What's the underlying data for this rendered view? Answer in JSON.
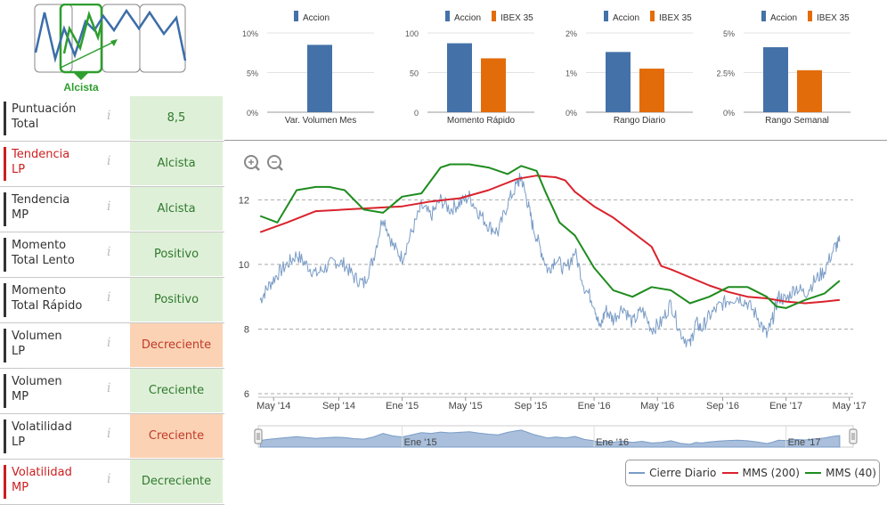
{
  "trend": {
    "label": "Alcista"
  },
  "metrics": [
    {
      "label_l1": "Puntuación",
      "label_l2": "Total",
      "value": "8,5",
      "status": "green",
      "label_red": false
    },
    {
      "label_l1": "Tendencia",
      "label_l2": "LP",
      "value": "Alcista",
      "status": "green",
      "label_red": true
    },
    {
      "label_l1": "Tendencia",
      "label_l2": "MP",
      "value": "Alcista",
      "status": "green",
      "label_red": false
    },
    {
      "label_l1": "Momento",
      "label_l2": "Total Lento",
      "value": "Positivo",
      "status": "green",
      "label_red": false
    },
    {
      "label_l1": "Momento",
      "label_l2": "Total Rápido",
      "value": "Positivo",
      "status": "green",
      "label_red": false
    },
    {
      "label_l1": "Volumen",
      "label_l2": "LP",
      "value": "Decreciente",
      "status": "orange",
      "label_red": false
    },
    {
      "label_l1": "Volumen",
      "label_l2": "MP",
      "value": "Creciente",
      "status": "green",
      "label_red": false
    },
    {
      "label_l1": "Volatilidad",
      "label_l2": "LP",
      "value": "Creciente",
      "status": "orange",
      "label_red": false
    },
    {
      "label_l1": "Volatilidad",
      "label_l2": "MP",
      "value": "Decreciente",
      "status": "green",
      "label_red": true
    }
  ],
  "info_icon": "i",
  "colors": {
    "accion": "#4472a8",
    "ibex": "#e36c0a",
    "cierre": "#7a9cc6",
    "mms200": "#d9232d",
    "mms40": "#1e8c1e",
    "trend_green": "#2e9e2e"
  },
  "chart_data": [
    {
      "type": "bar",
      "title": "Var. Volumen Mes",
      "yticks": [
        "10%",
        "5%",
        "0%"
      ],
      "ylim": [
        0,
        10
      ],
      "series": [
        {
          "name": "Accion",
          "values": [
            8.5
          ]
        }
      ]
    },
    {
      "type": "bar",
      "title": "Momento Rápido",
      "yticks": [
        "100",
        "50",
        "0"
      ],
      "ylim": [
        0,
        100
      ],
      "series": [
        {
          "name": "Accion",
          "values": [
            87
          ]
        },
        {
          "name": "IBEX 35",
          "values": [
            68
          ]
        }
      ]
    },
    {
      "type": "bar",
      "title": "Rango Diario",
      "yticks": [
        "2%",
        "1%",
        "0%"
      ],
      "ylim": [
        0,
        2
      ],
      "series": [
        {
          "name": "Accion",
          "values": [
            1.52
          ]
        },
        {
          "name": "IBEX 35",
          "values": [
            1.1
          ]
        }
      ]
    },
    {
      "type": "bar",
      "title": "Rango Semanal",
      "yticks": [
        "5%",
        "2.5%",
        "0%"
      ],
      "ylim": [
        0,
        5
      ],
      "series": [
        {
          "name": "Accion",
          "values": [
            4.1
          ]
        },
        {
          "name": "IBEX 35",
          "values": [
            2.65
          ]
        }
      ]
    },
    {
      "type": "line",
      "title": "",
      "yticks": [
        "12",
        "10",
        "8",
        "6"
      ],
      "ylim": [
        6,
        13.5
      ],
      "xlim": [
        2014.25,
        2017.35
      ],
      "xticks": [
        {
          "label": "May '14",
          "t": 2014.33
        },
        {
          "label": "Sep '14",
          "t": 2014.67
        },
        {
          "label": "Ene '15",
          "t": 2015.0
        },
        {
          "label": "May '15",
          "t": 2015.33
        },
        {
          "label": "Sep '15",
          "t": 2015.67
        },
        {
          "label": "Ene '16",
          "t": 2016.0
        },
        {
          "label": "May '16",
          "t": 2016.33
        },
        {
          "label": "Sep '16",
          "t": 2016.67
        },
        {
          "label": "Ene '17",
          "t": 2017.0
        },
        {
          "label": "May '17",
          "t": 2017.33
        }
      ],
      "navigator_labels": [
        {
          "label": "Ene '15",
          "t": 2015.0
        },
        {
          "label": "Ene '16",
          "t": 2016.0
        },
        {
          "label": "Ene '17",
          "t": 2017.0
        }
      ],
      "series": [
        {
          "name": "Cierre Diario",
          "t": [
            2014.26,
            2014.3,
            2014.35,
            2014.4,
            2014.45,
            2014.5,
            2014.55,
            2014.6,
            2014.65,
            2014.7,
            2014.75,
            2014.8,
            2014.85,
            2014.9,
            2014.95,
            2015.0,
            2015.05,
            2015.1,
            2015.15,
            2015.2,
            2015.25,
            2015.3,
            2015.35,
            2015.4,
            2015.45,
            2015.5,
            2015.55,
            2015.6,
            2015.62,
            2015.65,
            2015.68,
            2015.72,
            2015.76,
            2015.8,
            2015.85,
            2015.9,
            2015.95,
            2016.0,
            2016.03,
            2016.06,
            2016.1,
            2016.15,
            2016.2,
            2016.25,
            2016.3,
            2016.35,
            2016.4,
            2016.45,
            2016.5,
            2016.53,
            2016.56,
            2016.6,
            2016.65,
            2016.7,
            2016.75,
            2016.8,
            2016.85,
            2016.9,
            2016.93,
            2016.96,
            2017.0,
            2017.05,
            2017.1,
            2017.15,
            2017.2,
            2017.25,
            2017.28
          ],
          "values": [
            8.9,
            9.3,
            9.7,
            10.0,
            10.3,
            10.0,
            9.7,
            9.9,
            10.1,
            10.0,
            9.6,
            9.4,
            10.2,
            11.5,
            10.6,
            10.2,
            11.0,
            11.8,
            11.5,
            12.0,
            11.7,
            11.9,
            12.1,
            11.6,
            11.2,
            11.0,
            11.9,
            12.5,
            12.7,
            12.0,
            11.2,
            10.5,
            9.8,
            10.2,
            9.8,
            10.4,
            9.3,
            8.8,
            8.0,
            8.6,
            8.3,
            8.7,
            8.2,
            8.6,
            8.0,
            8.2,
            8.8,
            7.9,
            7.5,
            8.2,
            8.0,
            8.4,
            8.7,
            8.9,
            9.0,
            8.8,
            8.4,
            7.8,
            8.3,
            9.0,
            8.9,
            9.3,
            9.1,
            9.5,
            9.8,
            10.5,
            10.7
          ]
        },
        {
          "name": "MMS (200)",
          "t": [
            2014.26,
            2014.4,
            2014.55,
            2014.7,
            2014.85,
            2015.0,
            2015.15,
            2015.3,
            2015.45,
            2015.6,
            2015.7,
            2015.8,
            2015.85,
            2015.9,
            2016.0,
            2016.1,
            2016.2,
            2016.3,
            2016.35,
            2016.4,
            2016.5,
            2016.6,
            2016.7,
            2016.8,
            2016.9,
            2017.0,
            2017.1,
            2017.2,
            2017.28
          ],
          "values": [
            11.0,
            11.3,
            11.65,
            11.7,
            11.75,
            11.8,
            11.95,
            12.05,
            12.3,
            12.65,
            12.75,
            12.7,
            12.6,
            12.25,
            11.8,
            11.45,
            11.0,
            10.55,
            9.95,
            9.85,
            9.6,
            9.35,
            9.15,
            9.0,
            8.95,
            8.85,
            8.8,
            8.85,
            8.9
          ]
        },
        {
          "name": "MMS (40)",
          "t": [
            2014.26,
            2014.35,
            2014.45,
            2014.55,
            2014.62,
            2014.7,
            2014.8,
            2014.9,
            2015.0,
            2015.1,
            2015.2,
            2015.25,
            2015.35,
            2015.45,
            2015.55,
            2015.62,
            2015.7,
            2015.75,
            2015.82,
            2015.9,
            2016.0,
            2016.1,
            2016.2,
            2016.3,
            2016.4,
            2016.5,
            2016.6,
            2016.7,
            2016.8,
            2016.9,
            2016.95,
            2017.0,
            2017.1,
            2017.2,
            2017.28
          ],
          "values": [
            11.5,
            11.3,
            12.3,
            12.4,
            12.4,
            12.3,
            11.7,
            11.6,
            12.1,
            12.2,
            13.0,
            13.1,
            13.1,
            13.0,
            12.8,
            13.05,
            12.9,
            12.2,
            11.3,
            10.9,
            9.9,
            9.2,
            9.0,
            9.3,
            9.2,
            8.8,
            9.0,
            9.3,
            9.3,
            9.0,
            8.7,
            8.65,
            8.9,
            9.1,
            9.5
          ]
        }
      ]
    }
  ]
}
